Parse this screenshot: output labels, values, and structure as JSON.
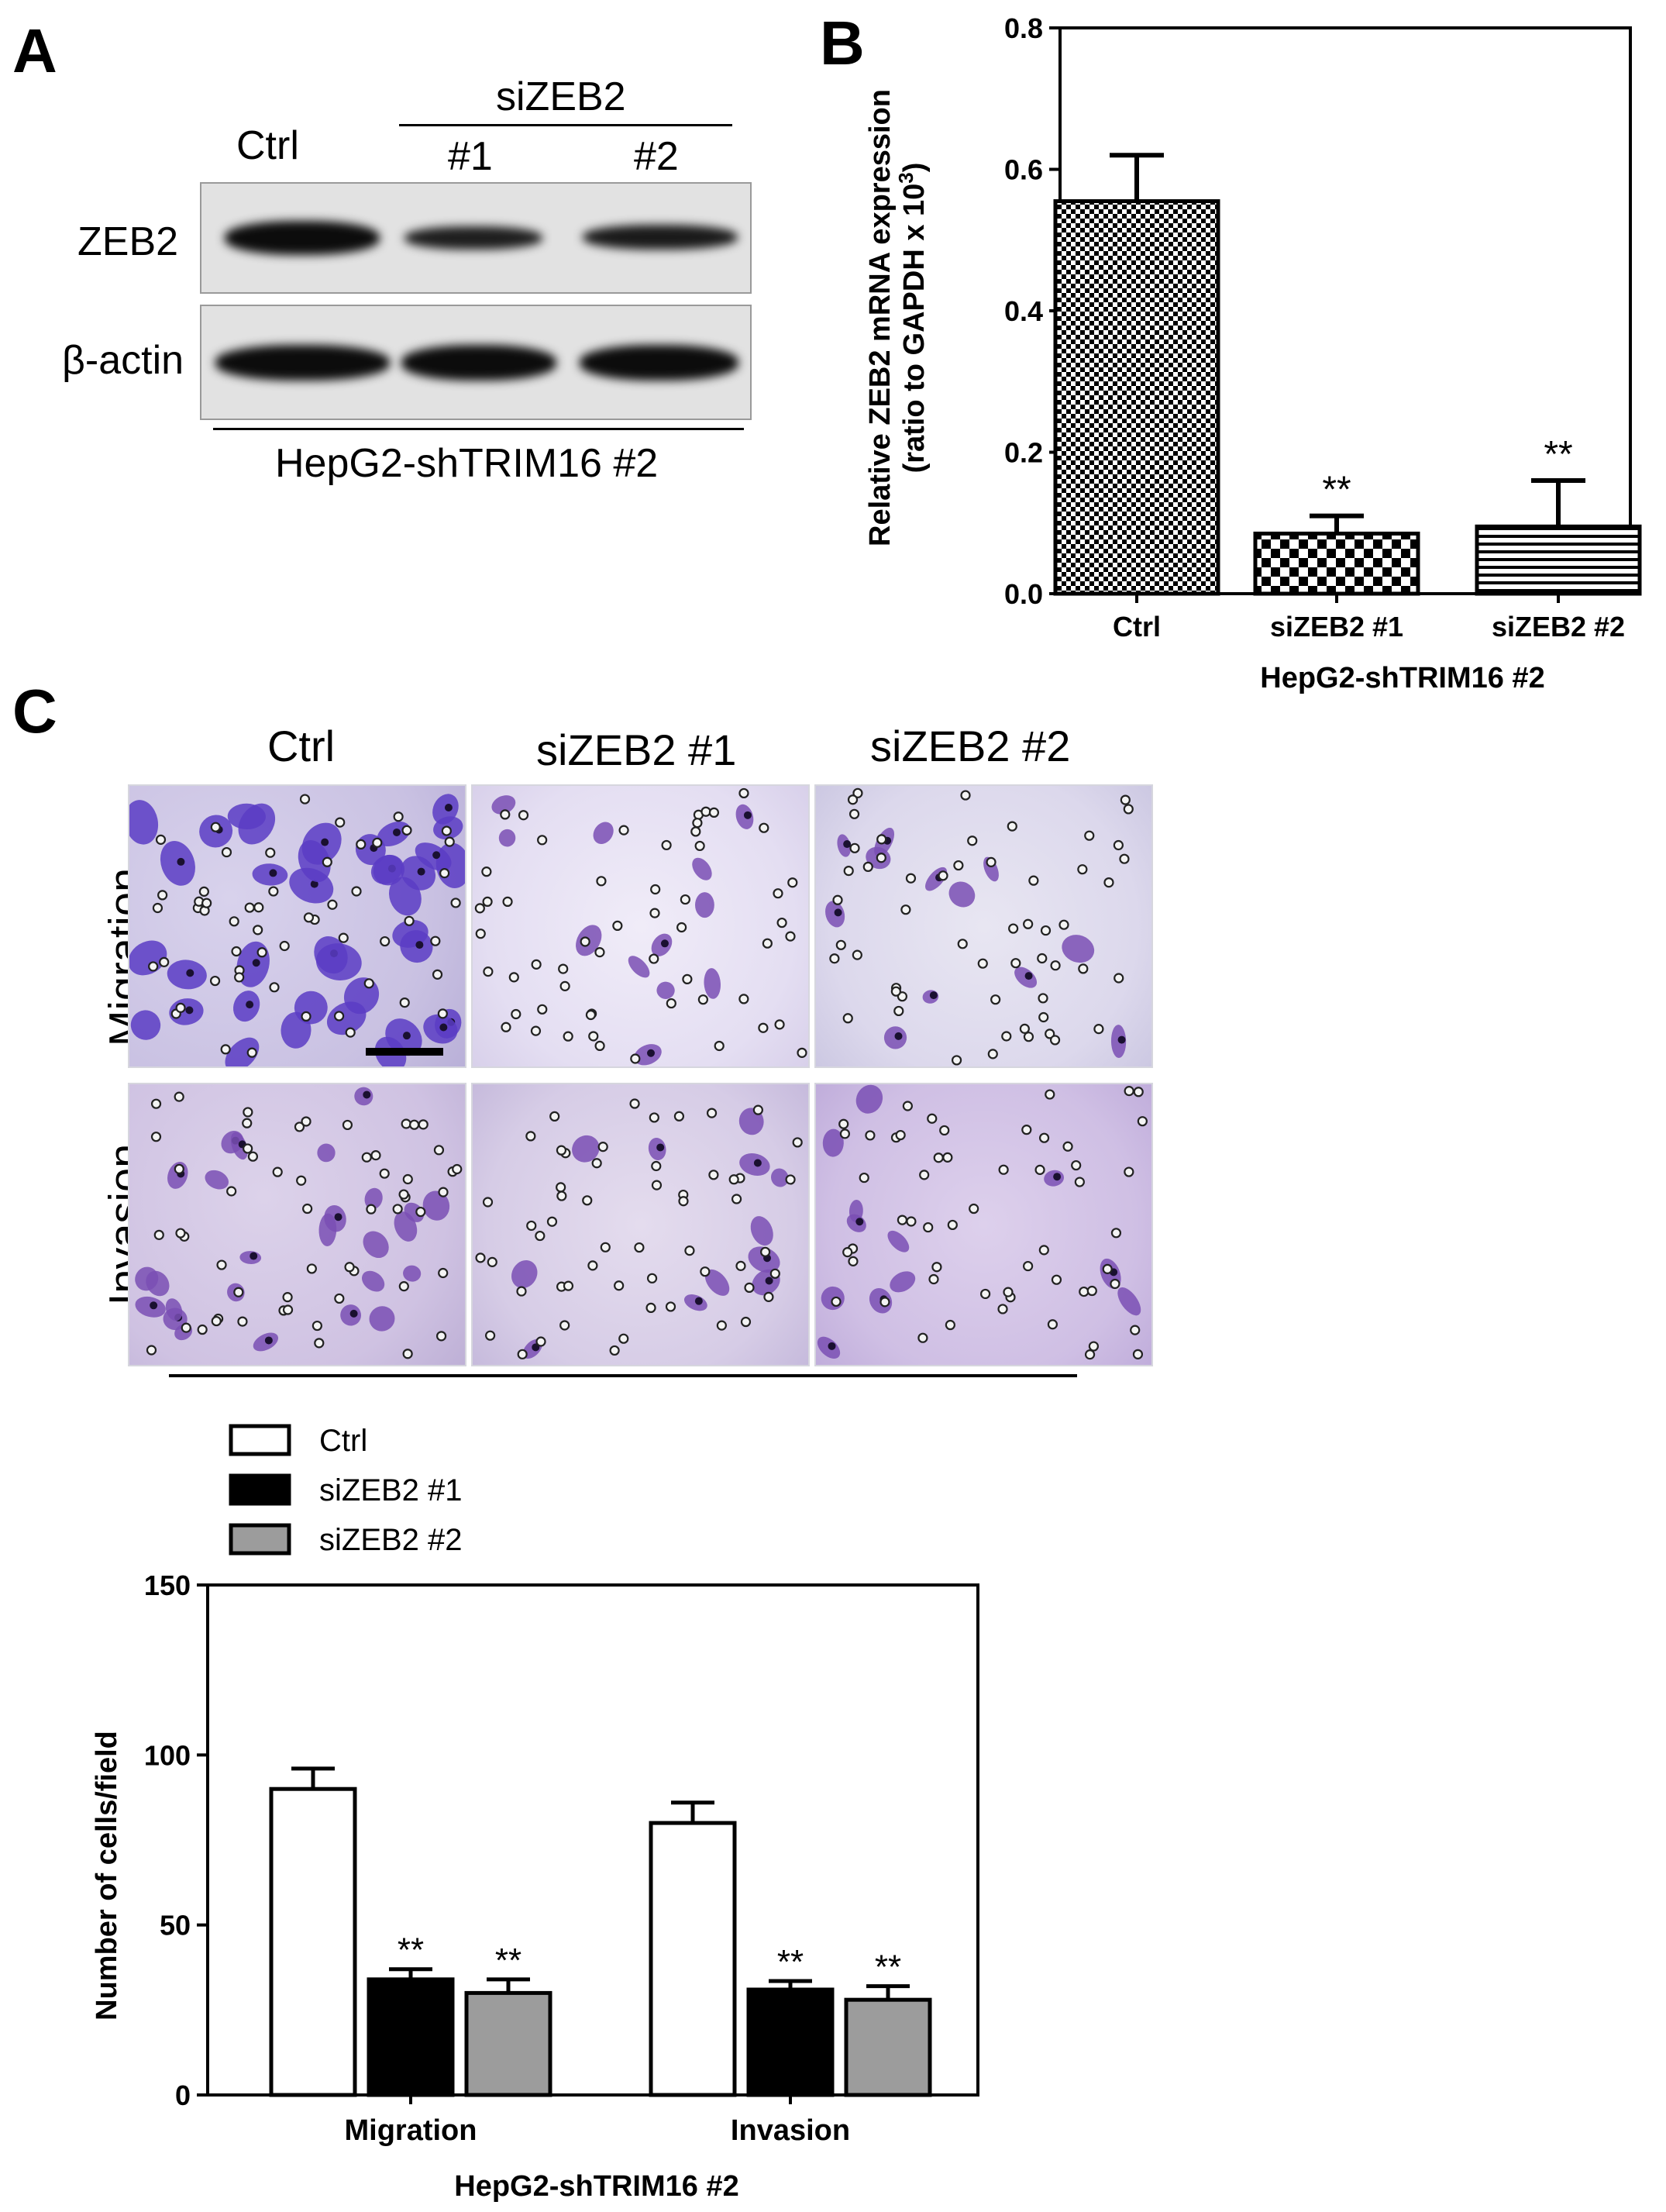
{
  "panel_letters": {
    "a": "A",
    "b": "B",
    "c": "C"
  },
  "panel_a": {
    "group_label": "siZEB2",
    "lane_labels": [
      "Ctrl",
      "#1",
      "#2"
    ],
    "row_labels": [
      "ZEB2",
      "β-actin"
    ],
    "bottom_label": "HepG2-shTRIM16 #2"
  },
  "panel_c": {
    "col_labels": [
      "Ctrl",
      "siZEB2 #1",
      "siZEB2 #2"
    ],
    "row_labels": [
      "Migration",
      "Invasion"
    ]
  },
  "chart_data": [
    {
      "type": "bar",
      "ylabel_line1": "Relative  ZEB2 mRNA expression",
      "ylabel_line2_prefix": "(ratio to  GAPDH x 10",
      "ylabel_line2_sup": "3",
      "ylabel_line2_suffix": ")",
      "xlabel": "HepG2-shTRIM16 #2",
      "categories": [
        "Ctrl",
        "siZEB2 #1",
        "siZEB2 #2"
      ],
      "values": [
        0.555,
        0.085,
        0.095
      ],
      "errors": [
        0.065,
        0.025,
        0.065
      ],
      "annotations": [
        "",
        "**",
        "**"
      ],
      "ylim": [
        0,
        0.8
      ],
      "yticks": [
        "0.0",
        "0.2",
        "0.4",
        "0.6",
        "0.8"
      ],
      "fills": [
        "checker-fine",
        "checker-coarse",
        "horizontal-lines"
      ]
    },
    {
      "type": "bar",
      "ylabel": "Number of  cells/field",
      "xlabel": "HepG2-shTRIM16 #2",
      "categories": [
        "Migration",
        "Invasion"
      ],
      "series": [
        {
          "name": "Ctrl",
          "values": [
            90,
            80
          ],
          "errors": [
            6,
            6
          ],
          "annotations": [
            "",
            ""
          ],
          "color": "#ffffff"
        },
        {
          "name": "siZEB2 #1",
          "values": [
            34,
            31
          ],
          "errors": [
            3,
            2.5
          ],
          "annotations": [
            "**",
            "**"
          ],
          "color": "#000000"
        },
        {
          "name": "siZEB2 #2",
          "values": [
            30,
            28
          ],
          "errors": [
            4,
            4
          ],
          "annotations": [
            "**",
            "**"
          ],
          "color": "#9c9c9c"
        }
      ],
      "ylim": [
        0,
        150
      ],
      "yticks": [
        "0",
        "50",
        "100",
        "150"
      ],
      "legend_position": "top-left"
    }
  ]
}
